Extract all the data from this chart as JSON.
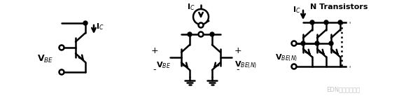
{
  "bg_color": "#ffffff",
  "line_color": "#000000",
  "fig_width": 6.0,
  "fig_height": 1.5,
  "dpi": 100
}
